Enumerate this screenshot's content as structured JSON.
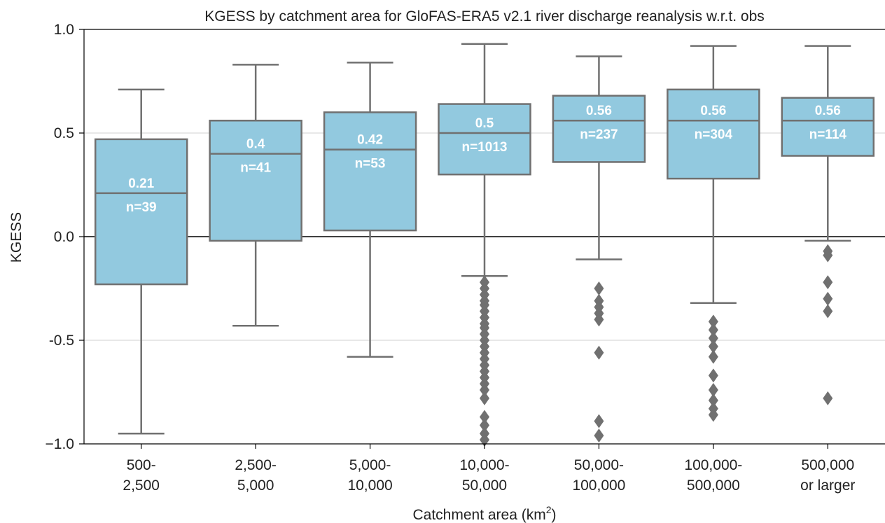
{
  "chart_data": {
    "type": "box",
    "title": "KGESS by catchment area for GloFAS-ERA5 v2.1 river discharge reanalysis w.r.t. obs",
    "xlabel": "Catchment area (km",
    "xlabel_sup": "2",
    "xlabel_end": ")",
    "ylabel": "KGESS",
    "ylim": [
      -1.0,
      1.0
    ],
    "yticks": [
      1.0,
      0.5,
      0.0,
      -0.5,
      -1.0
    ],
    "ytick_labels": [
      "1.0",
      "0.5",
      "0.0",
      "-0.5",
      "−1.0"
    ],
    "grid": "horizontal",
    "zero_line": true,
    "colors": {
      "box_fill": "#92c9df",
      "box_edge": "#707070",
      "whisker": "#707070",
      "label": "#ffffff",
      "grid": "#d0d0d0",
      "axis": "#000000"
    },
    "categories": [
      {
        "line1": "500-",
        "line2": "2,500",
        "q1": -0.23,
        "median": 0.21,
        "q3": 0.47,
        "whislo": -0.95,
        "whishi": 0.71,
        "median_label": "0.21",
        "n_label": "n=39",
        "fliers": []
      },
      {
        "line1": "2,500-",
        "line2": "5,000",
        "q1": -0.02,
        "median": 0.4,
        "q3": 0.56,
        "whislo": -0.43,
        "whishi": 0.83,
        "median_label": "0.4",
        "n_label": "n=41",
        "fliers": []
      },
      {
        "line1": "5,000-",
        "line2": "10,000",
        "q1": 0.03,
        "median": 0.42,
        "q3": 0.6,
        "whislo": -0.58,
        "whishi": 0.84,
        "median_label": "0.42",
        "n_label": "n=53",
        "fliers": []
      },
      {
        "line1": "10,000-",
        "line2": "50,000",
        "q1": 0.3,
        "median": 0.5,
        "q3": 0.64,
        "whislo": -0.19,
        "whishi": 0.93,
        "median_label": "0.5",
        "n_label": "n=1013",
        "fliers": [
          -0.22,
          -0.25,
          -0.28,
          -0.31,
          -0.33,
          -0.36,
          -0.39,
          -0.42,
          -0.44,
          -0.47,
          -0.5,
          -0.53,
          -0.56,
          -0.59,
          -0.62,
          -0.65,
          -0.68,
          -0.71,
          -0.74,
          -0.78,
          -0.87,
          -0.91,
          -0.95,
          -0.98
        ]
      },
      {
        "line1": "50,000-",
        "line2": "100,000",
        "q1": 0.36,
        "median": 0.56,
        "q3": 0.68,
        "whislo": -0.11,
        "whishi": 0.87,
        "median_label": "0.56",
        "n_label": "n=237",
        "fliers": [
          -0.25,
          -0.31,
          -0.34,
          -0.37,
          -0.4,
          -0.56,
          -0.89,
          -0.96
        ]
      },
      {
        "line1": "100,000-",
        "line2": "500,000",
        "q1": 0.28,
        "median": 0.56,
        "q3": 0.71,
        "whislo": -0.32,
        "whishi": 0.92,
        "median_label": "0.56",
        "n_label": "n=304",
        "fliers": [
          -0.41,
          -0.45,
          -0.49,
          -0.53,
          -0.58,
          -0.67,
          -0.74,
          -0.79,
          -0.83,
          -0.86
        ]
      },
      {
        "line1": "500,000",
        "line2": "or larger",
        "q1": 0.39,
        "median": 0.56,
        "q3": 0.67,
        "whislo": -0.02,
        "whishi": 0.92,
        "median_label": "0.56",
        "n_label": "n=114",
        "fliers": [
          -0.07,
          -0.09,
          -0.22,
          -0.3,
          -0.36,
          -0.78
        ]
      }
    ]
  }
}
